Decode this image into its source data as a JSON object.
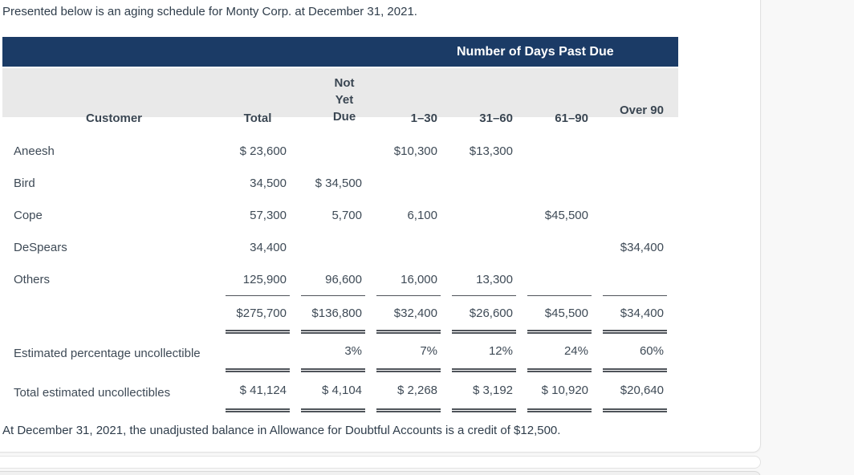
{
  "page": {
    "intro_text": "Presented below is an aging schedule for Monty Corp. at December 31, 2021.",
    "note_text": "At December 31, 2021, the unadjusted balance in Allowance for Doubtful Accounts is a credit of $12,500."
  },
  "colors": {
    "banner_bg": "#1b3b66",
    "banner_text": "#ffffff",
    "column_header_bg": "#e9e9e9",
    "body_text": "#3e4a56",
    "rule_lines": "#4f545a",
    "card_bg": "#ffffff",
    "page_bg": "#f8f8f8"
  },
  "table": {
    "banner_title": "Number of Days Past Due",
    "headers": {
      "customer": "Customer",
      "total": "Total",
      "not_yet_due": "Not\nYet Due",
      "days_1_30": "1–30",
      "days_31_60": "31–60",
      "days_61_90": "61–90",
      "over_90": "Over 90"
    },
    "rows": [
      {
        "label": "Aneesh",
        "cells": [
          "$ 23,600",
          "",
          "$10,300",
          "$13,300",
          "",
          ""
        ]
      },
      {
        "label": "Bird",
        "cells": [
          "34,500",
          "$ 34,500",
          "",
          "",
          "",
          ""
        ]
      },
      {
        "label": "Cope",
        "cells": [
          "57,300",
          "5,700",
          "6,100",
          "",
          "$45,500",
          ""
        ]
      },
      {
        "label": "DeSpears",
        "cells": [
          "34,400",
          "",
          "",
          "",
          "",
          "$34,400"
        ]
      },
      {
        "label": "Others",
        "cells": [
          "125,900",
          "96,600",
          "16,000",
          "13,300",
          "",
          ""
        ]
      }
    ],
    "totals_row": {
      "label": "",
      "cells": [
        "$275,700",
        "$136,800",
        "$32,400",
        "$26,600",
        "$45,500",
        "$34,400"
      ]
    },
    "percentage_row": {
      "label": "Estimated percentage uncollectible",
      "cells": [
        "",
        "3%",
        "7%",
        "12%",
        "24%",
        "60%"
      ]
    },
    "uncollectibles_row": {
      "label": "Total estimated uncollectibles",
      "cells": [
        "$ 41,124",
        "$ 4,104",
        "$ 2,268",
        "$ 3,192",
        "$ 10,920",
        "$20,640"
      ]
    }
  }
}
